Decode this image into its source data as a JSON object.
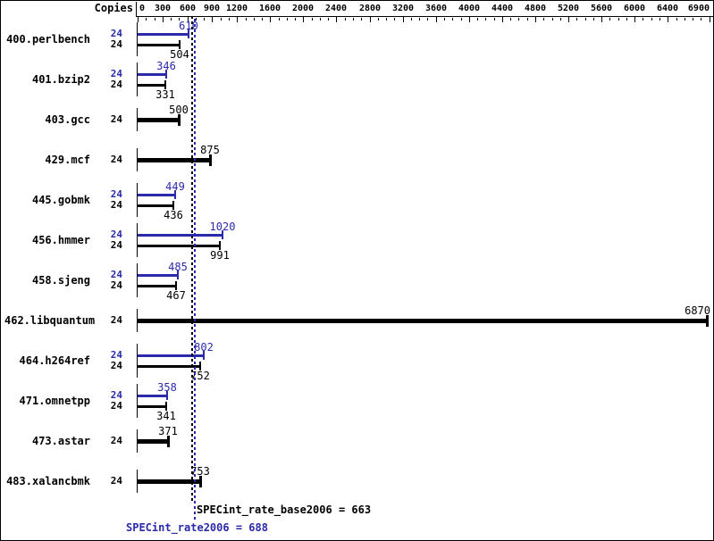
{
  "chart_data": {
    "type": "bar",
    "orientation": "horizontal",
    "copies_header": "Copies",
    "axis": {
      "min": 0,
      "max": 6900,
      "major_ticks": [
        0,
        300,
        600,
        900,
        1200,
        1600,
        2000,
        2400,
        2800,
        3200,
        3600,
        4000,
        4400,
        4800,
        5200,
        5600,
        6000,
        6400,
        6900
      ],
      "minor_tick_interval": 100,
      "position": "top"
    },
    "legend": "blue bar = peak (SPECint_rate2006), black bar = base (SPECint_rate_base2006)",
    "benchmarks": [
      {
        "name": "400.perlbench",
        "copies": 24,
        "peak": 610,
        "base": 504
      },
      {
        "name": "401.bzip2",
        "copies": 24,
        "peak": 346,
        "base": 331
      },
      {
        "name": "403.gcc",
        "copies": 24,
        "peak": null,
        "base": 500
      },
      {
        "name": "429.mcf",
        "copies": 24,
        "peak": null,
        "base": 875
      },
      {
        "name": "445.gobmk",
        "copies": 24,
        "peak": 449,
        "base": 436
      },
      {
        "name": "456.hmmer",
        "copies": 24,
        "peak": 1020,
        "base": 991
      },
      {
        "name": "458.sjeng",
        "copies": 24,
        "peak": 485,
        "base": 467
      },
      {
        "name": "462.libquantum",
        "copies": 24,
        "peak": null,
        "base": 6870
      },
      {
        "name": "464.h264ref",
        "copies": 24,
        "peak": 802,
        "base": 752
      },
      {
        "name": "471.omnetpp",
        "copies": 24,
        "peak": 358,
        "base": 341
      },
      {
        "name": "473.astar",
        "copies": 24,
        "peak": null,
        "base": 371
      },
      {
        "name": "483.xalancbmk",
        "copies": 24,
        "peak": null,
        "base": 753
      }
    ],
    "reference_lines": [
      {
        "name": "base",
        "value": 663,
        "color": "#000000",
        "style": "dotted"
      },
      {
        "name": "peak",
        "value": 688,
        "color": "#2a2aaa",
        "style": "dotted"
      }
    ],
    "summary": {
      "base_text": "SPECint_rate_base2006 = 663",
      "peak_text": "SPECint_rate2006 = 688",
      "base_value": 663,
      "peak_value": 688
    },
    "colors": {
      "peak": "#2a2aaa",
      "base": "#000000",
      "background": "#ffffff"
    }
  }
}
